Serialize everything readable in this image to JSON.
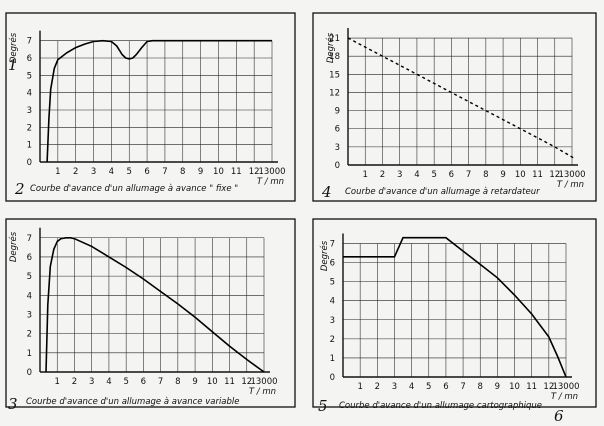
{
  "chart_data": [
    {
      "type": "line",
      "title": "Courbe d'avance d'un allumage à avance \" fixe \"",
      "marker": "2",
      "side_marker": "1",
      "ylabel": "Degrés",
      "xlabel": "T / mn",
      "ylim": [
        0,
        7.5
      ],
      "yticks": [
        0,
        1,
        2,
        3,
        4,
        5,
        6,
        7
      ],
      "xticks": [
        "1",
        "2",
        "3",
        "4",
        "5",
        "6",
        "7",
        "8",
        "9",
        "10",
        "11",
        "12",
        "13000"
      ],
      "grid": true,
      "line_style": "solid",
      "series": [
        {
          "x": [
            0.4,
            0.5,
            0.6,
            0.8,
            1,
            1.5,
            2,
            2.5,
            3,
            3.5,
            4,
            4.3,
            4.6,
            4.8,
            5,
            5.2,
            5.4,
            5.7,
            6,
            6.3,
            6.6,
            7,
            8,
            9,
            10,
            11,
            12,
            13
          ],
          "y": [
            0,
            2.5,
            4.2,
            5.4,
            5.9,
            6.3,
            6.6,
            6.8,
            6.95,
            7,
            6.95,
            6.7,
            6.2,
            6.0,
            5.95,
            6.0,
            6.2,
            6.6,
            6.95,
            7,
            7,
            7,
            7,
            7,
            7,
            7,
            7,
            7
          ]
        }
      ]
    },
    {
      "type": "line",
      "title": "Courbe d'avance d'un allumage à retardateur",
      "marker": "4",
      "ylabel": "Degrés",
      "xlabel": "T / mn",
      "ylim": [
        0,
        22
      ],
      "yticks": [
        0,
        3,
        6,
        9,
        12,
        15,
        18,
        21
      ],
      "xticks": [
        "1",
        "2",
        "3",
        "4",
        "5",
        "6",
        "7",
        "8",
        "9",
        "10",
        "11",
        "12",
        "13000"
      ],
      "grid": true,
      "line_style": "dotted",
      "series": [
        {
          "x": [
            0,
            2,
            4,
            6,
            8,
            10,
            12,
            13.2
          ],
          "y": [
            21,
            18,
            15,
            12,
            9,
            6,
            3,
            1
          ]
        }
      ]
    },
    {
      "type": "line",
      "title": "Courbe d'avance d'un allumage à avance variable",
      "marker": "3",
      "ylabel": "Degrés",
      "xlabel": "T / mn",
      "ylim": [
        0,
        7.3
      ],
      "yticks": [
        0,
        1,
        2,
        3,
        4,
        5,
        6,
        7
      ],
      "xticks": [
        "1",
        "2",
        "3",
        "4",
        "5",
        "6",
        "7",
        "8",
        "9",
        "10",
        "11",
        "12",
        "13000"
      ],
      "grid": true,
      "line_style": "solid",
      "series": [
        {
          "x": [
            0.35,
            0.45,
            0.6,
            0.8,
            1,
            1.2,
            1.5,
            1.8,
            2,
            3,
            4,
            5,
            6,
            7,
            8,
            9,
            10,
            11,
            12,
            13
          ],
          "y": [
            0,
            3.5,
            5.5,
            6.4,
            6.8,
            6.95,
            7,
            7,
            6.95,
            6.55,
            6.0,
            5.45,
            4.85,
            4.2,
            3.55,
            2.85,
            2.1,
            1.35,
            0.65,
            0
          ]
        }
      ]
    },
    {
      "type": "line",
      "title": "Courbe d'avance d'un allumage cartographique",
      "marker": "5",
      "bottom_marker": "6",
      "ylabel": "Degrés",
      "xlabel": "T / mn",
      "ylim": [
        0,
        7.6
      ],
      "yticks": [
        0,
        1,
        2,
        3,
        4,
        5,
        6,
        7
      ],
      "xticks": [
        "1",
        "2",
        "3",
        "4",
        "5",
        "6",
        "7",
        "8",
        "9",
        "10",
        "11",
        "12",
        "13000"
      ],
      "grid": true,
      "line_style": "solid",
      "series": [
        {
          "x": [
            0,
            3,
            3.5,
            6,
            7,
            8,
            9,
            10,
            11,
            12,
            12.5,
            13
          ],
          "y": [
            6.3,
            6.3,
            7.3,
            7.3,
            6.6,
            5.9,
            5.2,
            4.3,
            3.3,
            2.1,
            1.1,
            0
          ]
        }
      ]
    }
  ]
}
